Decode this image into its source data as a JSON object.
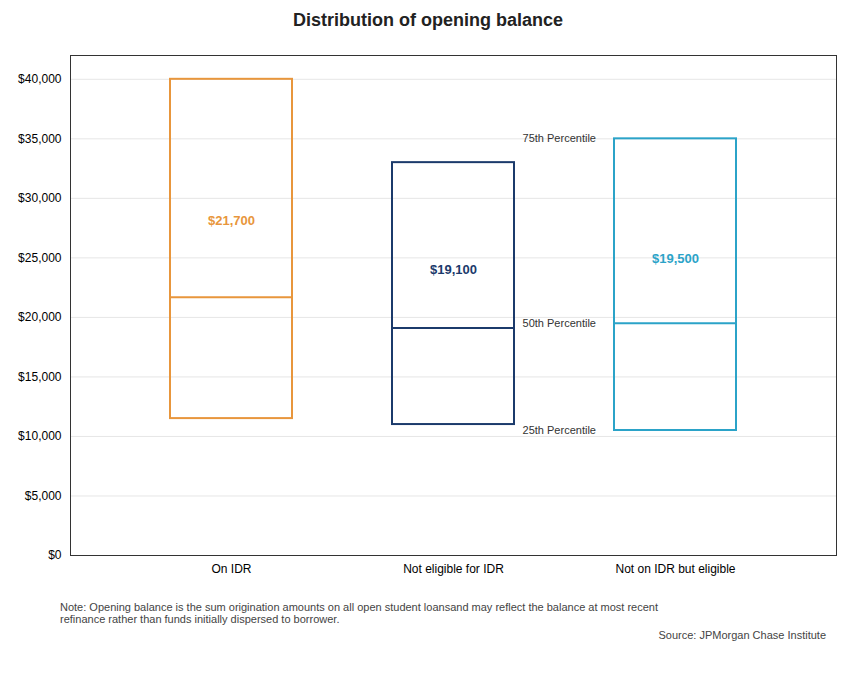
{
  "chart_data": {
    "type": "box",
    "title": "Distribution of opening balance",
    "categories": [
      "On IDR",
      "Not eligible for IDR",
      "Not on IDR but eligible"
    ],
    "q1": [
      11500,
      11000,
      10500
    ],
    "median": [
      21700,
      19100,
      19500
    ],
    "q3": [
      40000,
      33000,
      35000
    ],
    "value_labels": [
      "$21,700",
      "$19,100",
      "$19,500"
    ],
    "data_labels": true,
    "colors": [
      "#E8963C",
      "#1B3A6B",
      "#2BA3C8"
    ],
    "annotations": [
      "75th Percentile",
      "50th Percentile",
      "25th Percentile"
    ],
    "note": "Note: Opening balance is the sum origination amounts on all open student loansand may reflect the balance at most recent\nrefinance rather than funds initially dispersed to borrower.",
    "source": "Source: JPMorgan Chase Institute",
    "ylim": [
      0,
      42000
    ],
    "yticks": [
      {
        "value": 0,
        "label": "$0"
      },
      {
        "value": 5000,
        "label": "$5,000"
      },
      {
        "value": 10000,
        "label": "$10,000"
      },
      {
        "value": 15000,
        "label": "$15,000"
      },
      {
        "value": 20000,
        "label": "$20,000"
      },
      {
        "value": 25000,
        "label": "$25,000"
      },
      {
        "value": 30000,
        "label": "$30,000"
      },
      {
        "value": 35000,
        "label": "$35,000"
      },
      {
        "value": 40000,
        "label": "$40,000"
      }
    ],
    "grid": true
  }
}
